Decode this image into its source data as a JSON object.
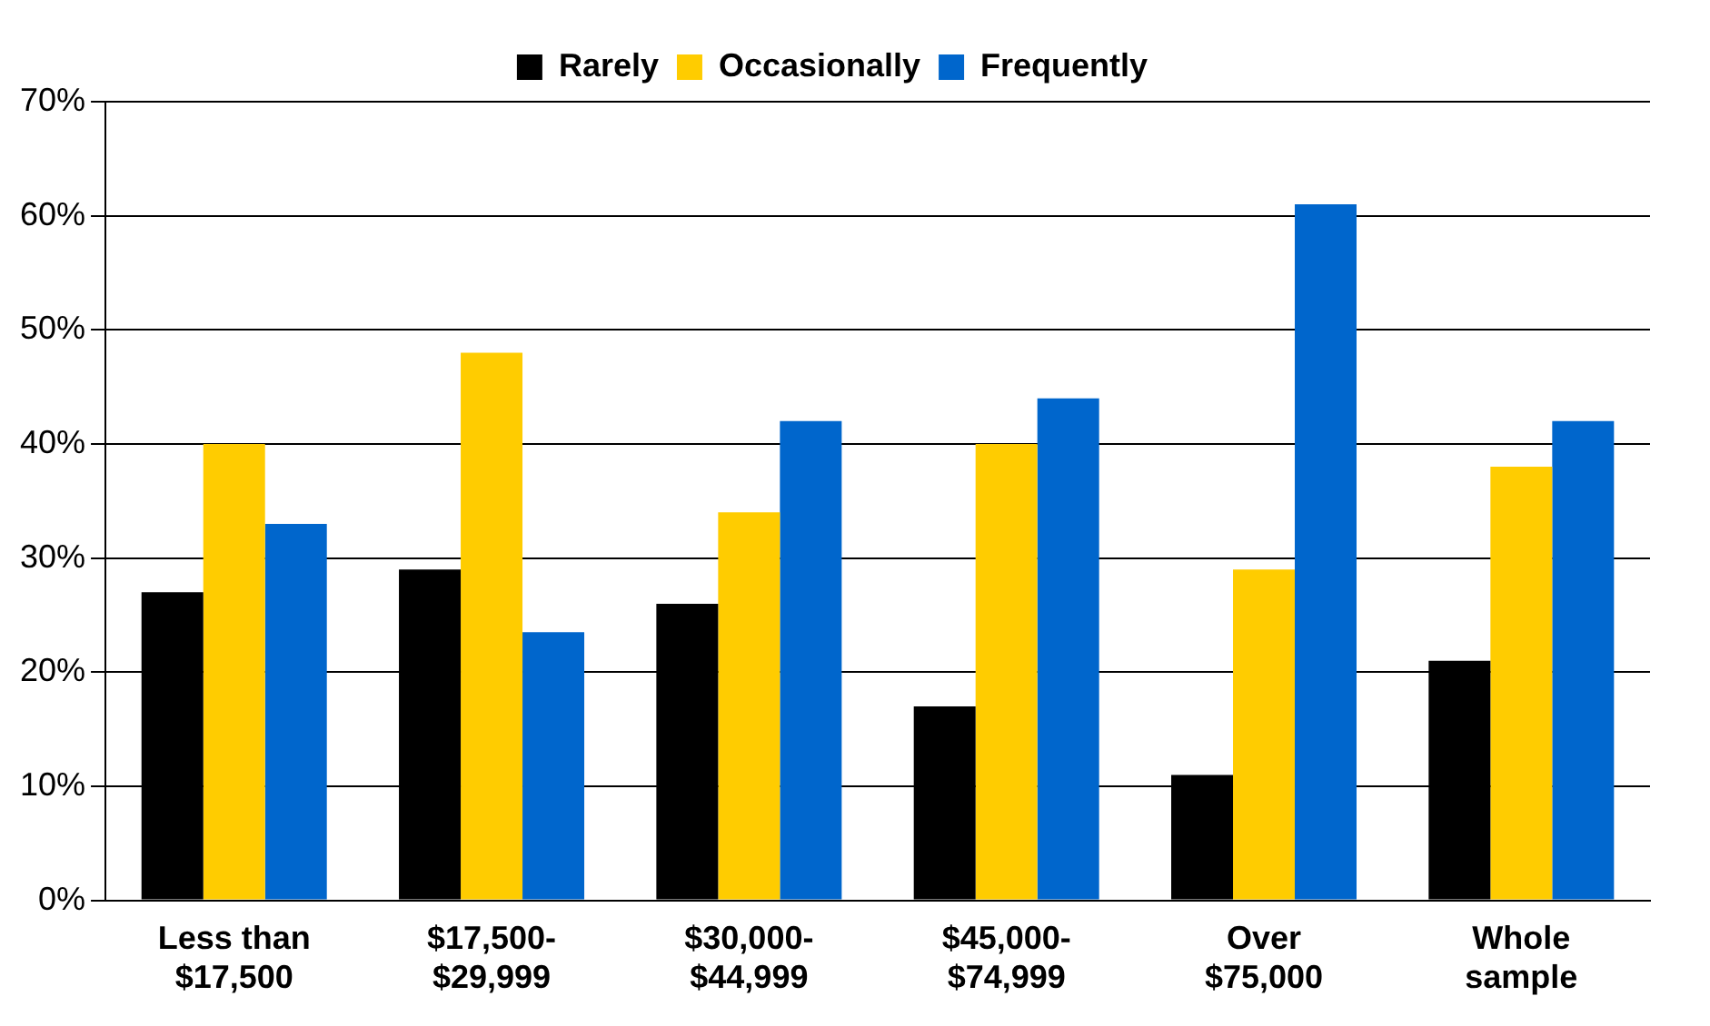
{
  "chart_data": {
    "type": "bar",
    "categories": [
      "Less than\n$17,500",
      "$17,500-\n$29,999",
      "$30,000-\n$44,999",
      "$45,000-\n$74,999",
      "Over\n$75,000",
      "Whole\nsample"
    ],
    "series": [
      {
        "name": "Rarely",
        "color": "#000000",
        "values": [
          27,
          29,
          26,
          17,
          11,
          21
        ]
      },
      {
        "name": "Occasionally",
        "color": "#ffcc00",
        "values": [
          40,
          48,
          34,
          40,
          29,
          38
        ]
      },
      {
        "name": "Frequently",
        "color": "#0066cc",
        "values": [
          33,
          23.5,
          42,
          44,
          61,
          42
        ]
      }
    ],
    "ylim": [
      0,
      70
    ],
    "yticks": [
      {
        "value": 0,
        "label": "0%"
      },
      {
        "value": 10,
        "label": "10%"
      },
      {
        "value": 20,
        "label": "20%"
      },
      {
        "value": 30,
        "label": "30%"
      },
      {
        "value": 40,
        "label": "40%"
      },
      {
        "value": 50,
        "label": "50%"
      },
      {
        "value": 60,
        "label": "60%"
      },
      {
        "value": 70,
        "label": "70%"
      }
    ],
    "grid": "y",
    "legend": "top"
  }
}
